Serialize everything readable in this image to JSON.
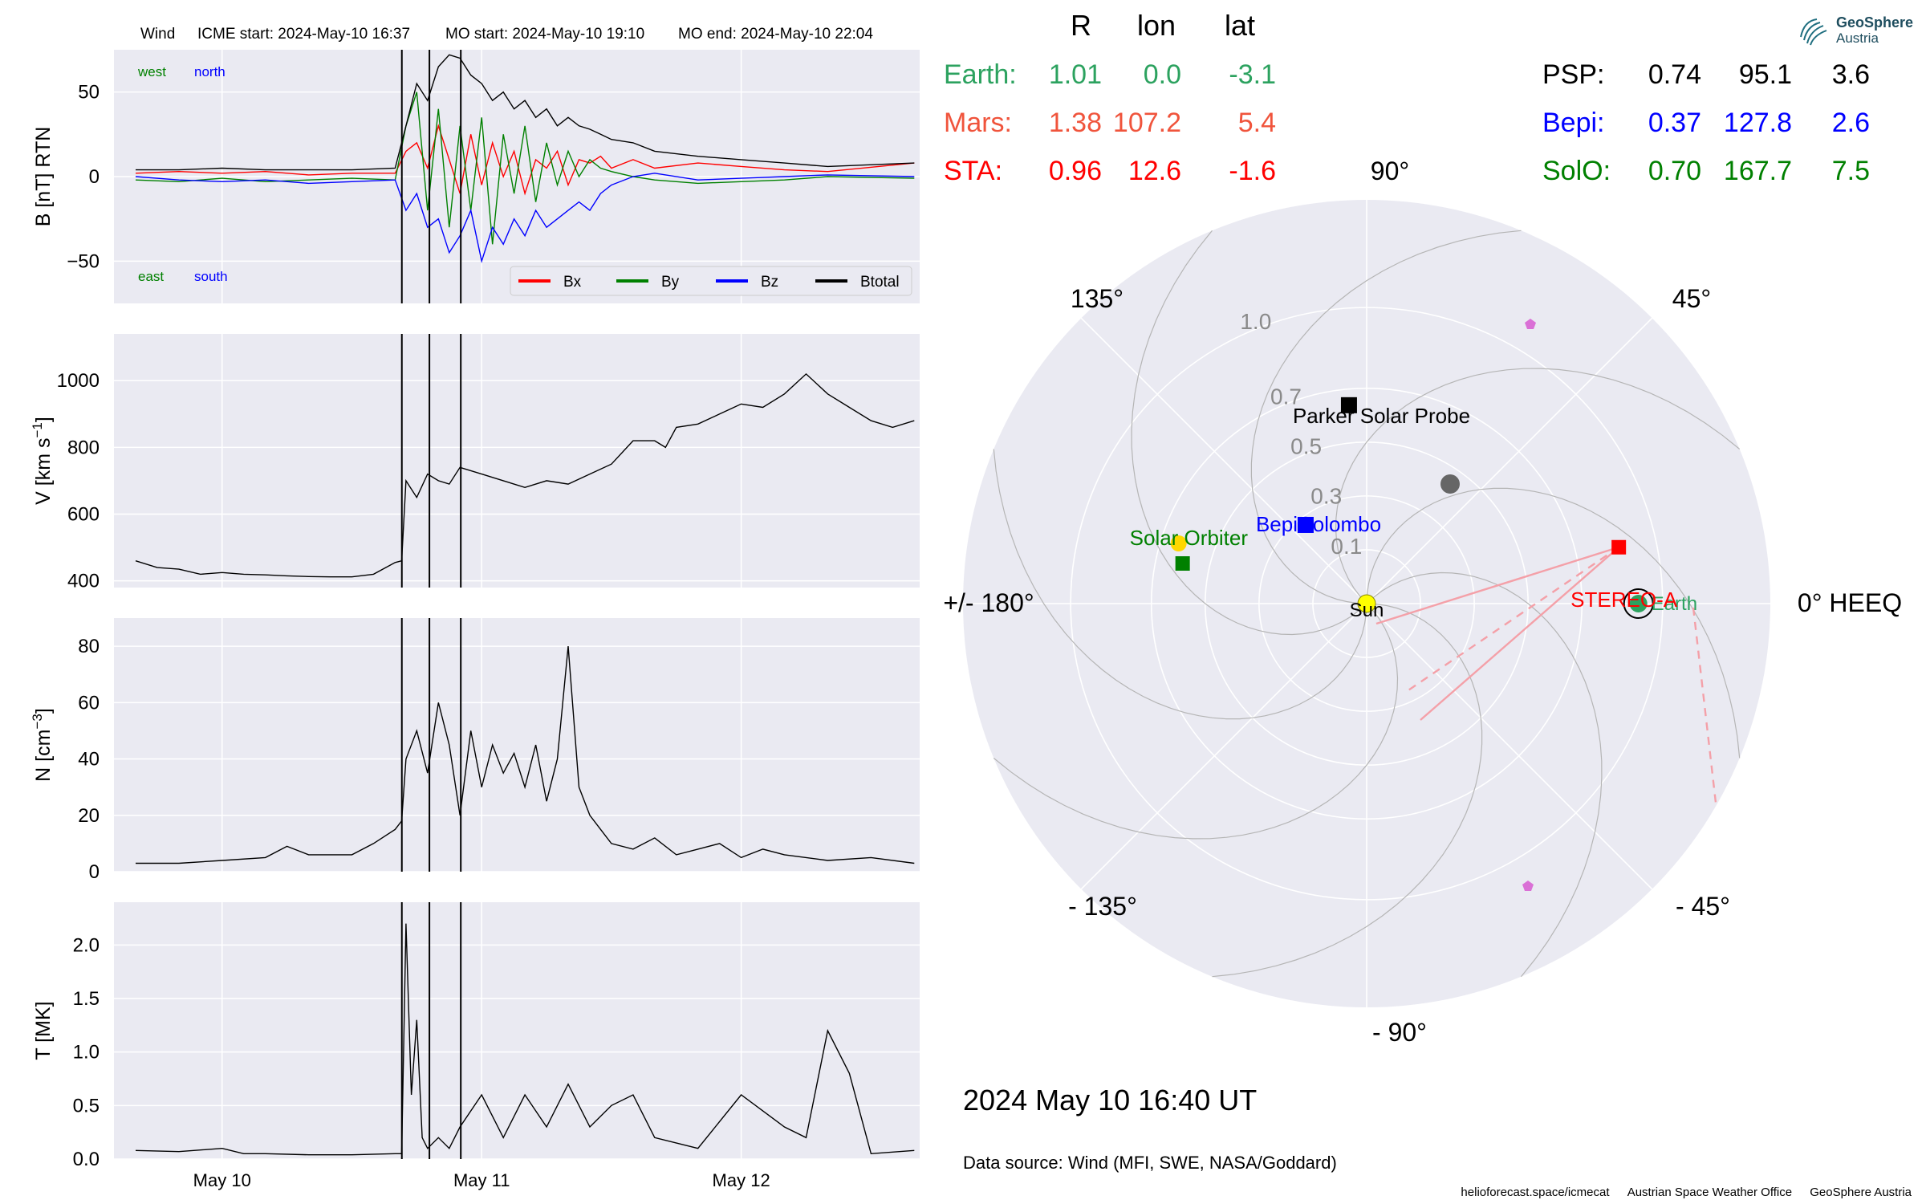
{
  "header": {
    "spacecraft": "Wind",
    "icme_start": "ICME start: 2024-May-10 16:37",
    "mo_start": "MO start: 2024-May-10 19:10",
    "mo_end": "MO end: 2024-May-10 22:04"
  },
  "labels": {
    "west": "west",
    "north": "north",
    "east": "east",
    "south": "south",
    "date_ticks": [
      "May 10",
      "May 11",
      "May 12"
    ]
  },
  "colors": {
    "bx": "#ff0000",
    "by": "#008000",
    "bz": "#0000ff",
    "btotal": "#000000",
    "plot_bg": "#eaeaf2",
    "earth": "#2ca25f",
    "mars": "#f0543c",
    "sta": "#ff0000",
    "psp": "#000000",
    "bepi": "#0000ff",
    "solo": "#008000"
  },
  "chart_data": [
    {
      "type": "line",
      "ylabel": "B [nT] RTN",
      "ylim": [
        -75,
        75
      ],
      "yticks": [
        50,
        0,
        -50
      ],
      "grid": true,
      "legend": [
        "Bx",
        "By",
        "Bz",
        "Btotal"
      ],
      "legend_position": "bottom-right",
      "events": [
        16.62,
        19.17,
        22.07
      ],
      "series": [
        {
          "name": "Bx",
          "x": [
            -8,
            -4,
            0,
            4,
            8,
            12,
            16,
            17,
            18,
            19,
            20,
            21,
            22,
            23,
            24,
            25,
            26,
            27,
            28,
            29,
            30,
            31,
            32,
            33,
            34,
            35,
            36,
            38,
            40,
            44,
            48,
            52,
            56,
            64
          ],
          "y": [
            2,
            3,
            2,
            3,
            1,
            2,
            2,
            15,
            20,
            5,
            30,
            10,
            -10,
            25,
            -5,
            20,
            0,
            15,
            -10,
            10,
            5,
            15,
            -5,
            10,
            8,
            12,
            5,
            10,
            5,
            8,
            6,
            4,
            3,
            8
          ]
        },
        {
          "name": "By",
          "x": [
            -8,
            -4,
            0,
            4,
            8,
            12,
            16,
            17,
            18,
            19,
            20,
            21,
            22,
            23,
            24,
            25,
            26,
            27,
            28,
            29,
            30,
            31,
            32,
            33,
            34,
            35,
            36,
            38,
            40,
            44,
            48,
            52,
            56,
            64
          ],
          "y": [
            -2,
            -3,
            -1,
            -3,
            -2,
            -1,
            -2,
            30,
            50,
            -20,
            40,
            -30,
            30,
            -20,
            35,
            -40,
            25,
            -10,
            30,
            -15,
            20,
            -5,
            15,
            0,
            10,
            5,
            3,
            0,
            -2,
            -4,
            -3,
            -2,
            0,
            -1
          ]
        },
        {
          "name": "Bz",
          "x": [
            -8,
            -4,
            0,
            4,
            8,
            12,
            16,
            17,
            18,
            19,
            20,
            21,
            22,
            23,
            24,
            25,
            26,
            27,
            28,
            29,
            30,
            31,
            32,
            33,
            34,
            35,
            36,
            38,
            40,
            44,
            48,
            52,
            56,
            64
          ],
          "y": [
            0,
            -2,
            -3,
            -2,
            -4,
            -3,
            -2,
            -20,
            -10,
            -30,
            -25,
            -45,
            -35,
            -20,
            -50,
            -30,
            -40,
            -25,
            -35,
            -20,
            -30,
            -25,
            -20,
            -15,
            -20,
            -10,
            -5,
            0,
            2,
            -2,
            -1,
            0,
            1,
            0
          ]
        },
        {
          "name": "Btotal",
          "x": [
            -8,
            -4,
            0,
            4,
            8,
            12,
            16,
            17,
            18,
            19,
            20,
            21,
            22,
            23,
            24,
            25,
            26,
            27,
            28,
            29,
            30,
            31,
            32,
            33,
            34,
            35,
            36,
            38,
            40,
            44,
            48,
            52,
            56,
            64
          ],
          "y": [
            4,
            4,
            5,
            4,
            4,
            4,
            5,
            30,
            55,
            45,
            65,
            72,
            70,
            60,
            55,
            45,
            50,
            40,
            45,
            35,
            40,
            30,
            35,
            30,
            28,
            25,
            22,
            20,
            15,
            12,
            10,
            8,
            6,
            8
          ]
        }
      ]
    },
    {
      "type": "line",
      "ylabel": "V [km s",
      "ylabel_sup": "−1",
      "ylabel_end": "]",
      "ylim": [
        380,
        1140
      ],
      "yticks": [
        1000,
        800,
        600,
        400
      ],
      "grid": true,
      "events": [
        16.62,
        19.17,
        22.07
      ],
      "series": [
        {
          "name": "V",
          "x": [
            -8,
            -6,
            -4,
            -2,
            0,
            2,
            4,
            6,
            8,
            10,
            12,
            14,
            16,
            16.6,
            17,
            18,
            19,
            20,
            21,
            22,
            24,
            26,
            28,
            30,
            32,
            34,
            36,
            38,
            40,
            41,
            42,
            44,
            46,
            48,
            50,
            52,
            54,
            56,
            58,
            60,
            62,
            64
          ],
          "y": [
            460,
            440,
            435,
            420,
            425,
            420,
            418,
            415,
            413,
            412,
            412,
            420,
            455,
            460,
            700,
            650,
            720,
            700,
            690,
            740,
            720,
            700,
            680,
            700,
            690,
            720,
            750,
            820,
            820,
            800,
            860,
            870,
            900,
            930,
            920,
            960,
            1020,
            960,
            920,
            880,
            860,
            880
          ]
        }
      ]
    },
    {
      "type": "line",
      "ylabel": "N [cm",
      "ylabel_sup": "−3",
      "ylabel_end": "]",
      "ylim": [
        0,
        90
      ],
      "yticks": [
        80,
        60,
        40,
        20,
        0
      ],
      "grid": true,
      "events": [
        16.62,
        19.17,
        22.07
      ],
      "series": [
        {
          "name": "N",
          "x": [
            -8,
            -4,
            0,
            4,
            6,
            8,
            12,
            14,
            16,
            16.6,
            17,
            18,
            19,
            20,
            21,
            22,
            23,
            24,
            25,
            26,
            27,
            28,
            29,
            30,
            31,
            32,
            33,
            34,
            35,
            36,
            38,
            40,
            42,
            44,
            46,
            48,
            50,
            52,
            56,
            60,
            64
          ],
          "y": [
            3,
            3,
            4,
            5,
            9,
            6,
            6,
            10,
            15,
            18,
            40,
            50,
            35,
            60,
            45,
            20,
            50,
            30,
            45,
            35,
            42,
            30,
            45,
            25,
            40,
            80,
            30,
            20,
            15,
            10,
            8,
            12,
            6,
            8,
            10,
            5,
            8,
            6,
            4,
            5,
            3
          ]
        }
      ]
    },
    {
      "type": "line",
      "ylabel": "T [MK]",
      "ylim": [
        0,
        2.4
      ],
      "yticks": [
        2.0,
        1.5,
        1.0,
        0.5,
        0.0
      ],
      "grid": true,
      "events": [
        16.62,
        19.17,
        22.07
      ],
      "series": [
        {
          "name": "T",
          "x": [
            -8,
            -4,
            0,
            2,
            4,
            8,
            12,
            16,
            16.6,
            17,
            17.5,
            18,
            18.5,
            19,
            20,
            21,
            22,
            24,
            26,
            28,
            30,
            32,
            34,
            36,
            38,
            40,
            44,
            48,
            52,
            54,
            56,
            58,
            60,
            64
          ],
          "y": [
            0.08,
            0.07,
            0.1,
            0.05,
            0.05,
            0.04,
            0.04,
            0.05,
            0.05,
            2.2,
            0.6,
            1.3,
            0.2,
            0.1,
            0.2,
            0.1,
            0.3,
            0.6,
            0.2,
            0.6,
            0.3,
            0.7,
            0.3,
            0.5,
            0.6,
            0.2,
            0.1,
            0.6,
            0.3,
            0.2,
            1.2,
            0.8,
            0.05,
            0.08
          ]
        }
      ]
    },
    {
      "type": "scatter",
      "subtype": "polar",
      "radial_ticks": [
        "0.1",
        "0.3",
        "0.5",
        "0.7",
        "1.0"
      ],
      "angle_labels": [
        "0° HEEQ",
        "45°",
        "90°",
        "135°",
        "+/- 180°",
        "- 135°",
        "- 90°",
        "- 45°"
      ],
      "objects": [
        {
          "name": "Sun",
          "r": 0.0,
          "lon": 0
        },
        {
          "name": "Earth",
          "r": 1.01,
          "lon": 0.0
        },
        {
          "name": "STEREO-A",
          "r": 0.96,
          "lon": 12.6
        },
        {
          "name": "Parker Solar Probe",
          "r": 0.74,
          "lon": 95.1
        },
        {
          "name": "BepiColombo",
          "r": 0.37,
          "lon": 127.8
        },
        {
          "name": "Solar Orbiter",
          "r": 0.7,
          "lon": 167.7
        },
        {
          "name": "Mars",
          "r": 1.38,
          "lon": 107.2
        }
      ]
    }
  ],
  "positions_table": {
    "headers": [
      "R",
      "lon",
      "lat"
    ],
    "left": [
      {
        "name": "Earth:",
        "r": "1.01",
        "lon": "0.0",
        "lat": "-3.1"
      },
      {
        "name": "Mars:",
        "r": "1.38",
        "lon": "107.2",
        "lat": "5.4"
      },
      {
        "name": "STA:",
        "r": "0.96",
        "lon": "12.6",
        "lat": "-1.6"
      }
    ],
    "right": [
      {
        "name": "PSP:",
        "r": "0.74",
        "lon": "95.1",
        "lat": "3.6"
      },
      {
        "name": "Bepi:",
        "r": "0.37",
        "lon": "127.8",
        "lat": "2.6"
      },
      {
        "name": "SolO:",
        "r": "0.70",
        "lon": "167.7",
        "lat": "7.5"
      }
    ]
  },
  "timestamp": "2024 May 10  16:40 UT",
  "data_source": "Data source: Wind (MFI, SWE, NASA/Goddard)",
  "footer": [
    "helioforecast.space/icmecat",
    "Austrian Space Weather Office",
    "GeoSphere Austria"
  ],
  "logo": {
    "line1": "GeoSphere",
    "line2": "Austria"
  }
}
